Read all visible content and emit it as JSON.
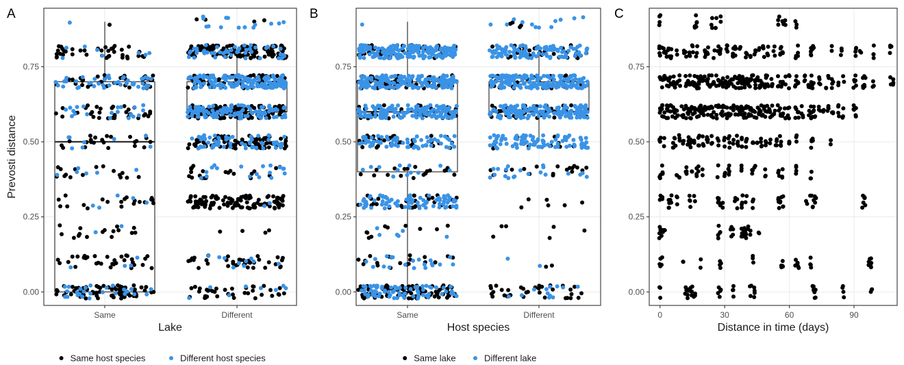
{
  "colors": {
    "black": "#000000",
    "blue": "#3a93e6"
  },
  "chart_data": [
    {
      "panel": "A",
      "type": "scatter",
      "xlabel": "Lake",
      "ylabel": "Prevosti distance",
      "categories": [
        "Same",
        "Different"
      ],
      "ylim": [
        -0.045,
        0.945
      ],
      "yticks": [
        0.0,
        0.25,
        0.5,
        0.75
      ],
      "ytick_labels": [
        "0.00",
        "0.25",
        "0.50",
        "0.75"
      ],
      "grid": true,
      "legend": {
        "position": "bottom",
        "entries": [
          {
            "label": "Same host species",
            "color": "#000000"
          },
          {
            "label": "Different host species",
            "color": "#3a93e6"
          }
        ]
      },
      "boxplots": [
        {
          "category": "Same",
          "min": 0.0,
          "q1": 0.0,
          "median": 0.5,
          "q3": 0.7,
          "max": 0.9
        },
        {
          "category": "Different",
          "min": 0.5,
          "q1": 0.6,
          "median": 0.6,
          "q3": 0.7,
          "max": 0.8
        }
      ],
      "series": [
        {
          "name": "Same host species",
          "color": "#000000",
          "points": {
            "Same": {
              "0.0": 70,
              "0.1": 32,
              "0.2": 16,
              "0.3": 20,
              "0.4": 16,
              "0.5": 22,
              "0.6": 34,
              "0.7": 36,
              "0.8": 38,
              "0.9": 1
            },
            "Different": {
              "0.0": 36,
              "0.1": 38,
              "0.2": 4,
              "0.3": 110,
              "0.4": 22,
              "0.5": 90,
              "0.6": 130,
              "0.7": 70,
              "0.8": 140,
              "0.9": 4
            }
          }
        },
        {
          "name": "Different host species",
          "color": "#3a93e6",
          "points": {
            "Same": {
              "0.0": 26,
              "0.1": 4,
              "0.2": 2,
              "0.3": 5,
              "0.4": 6,
              "0.5": 8,
              "0.6": 20,
              "0.7": 44,
              "0.8": 8,
              "0.9": 1
            },
            "Different": {
              "0.0": 8,
              "0.1": 10,
              "0.2": 0,
              "0.3": 2,
              "0.4": 18,
              "0.5": 60,
              "0.6": 110,
              "0.7": 150,
              "0.8": 50,
              "0.9": 14
            }
          }
        }
      ]
    },
    {
      "panel": "B",
      "type": "scatter",
      "xlabel": "Host species",
      "ylabel": "",
      "categories": [
        "Same",
        "Different"
      ],
      "ylim": [
        -0.045,
        0.945
      ],
      "yticks": [
        0.0,
        0.25,
        0.5,
        0.75
      ],
      "ytick_labels": [
        "0.00",
        "0.25",
        "0.50",
        "0.75"
      ],
      "grid": true,
      "legend": {
        "position": "bottom",
        "entries": [
          {
            "label": "Same lake",
            "color": "#000000"
          },
          {
            "label": "Different lake",
            "color": "#3a93e6"
          }
        ]
      },
      "boxplots": [
        {
          "category": "Same",
          "min": 0.0,
          "q1": 0.4,
          "median": 0.6,
          "q3": 0.7,
          "max": 0.9
        },
        {
          "category": "Different",
          "min": 0.5,
          "q1": 0.6,
          "median": 0.6,
          "q3": 0.7,
          "max": 0.8
        }
      ],
      "series": [
        {
          "name": "Same lake",
          "color": "#000000",
          "points": {
            "Same": {
              "0.0": 90,
              "0.1": 20,
              "0.2": 10,
              "0.3": 30,
              "0.4": 18,
              "0.5": 30,
              "0.6": 40,
              "0.7": 60,
              "0.8": 40,
              "0.9": 0
            },
            "Different": {
              "0.0": 34,
              "0.1": 2,
              "0.2": 6,
              "0.3": 6,
              "0.4": 18,
              "0.5": 10,
              "0.6": 40,
              "0.7": 36,
              "0.8": 30,
              "0.9": 4
            }
          }
        },
        {
          "name": "Different lake",
          "color": "#3a93e6",
          "points": {
            "Same": {
              "0.0": 70,
              "0.1": 20,
              "0.2": 6,
              "0.3": 80,
              "0.4": 12,
              "0.5": 70,
              "0.6": 150,
              "0.7": 170,
              "0.8": 170,
              "0.9": 1
            },
            "Different": {
              "0.0": 12,
              "0.1": 2,
              "0.2": 0,
              "0.3": 0,
              "0.4": 20,
              "0.5": 90,
              "0.6": 150,
              "0.7": 170,
              "0.8": 110,
              "0.9": 12
            }
          }
        }
      ]
    },
    {
      "panel": "C",
      "type": "scatter",
      "xlabel": "Distance in time (days)",
      "ylabel": "",
      "xlim": [
        -5,
        110
      ],
      "xticks": [
        0,
        30,
        60,
        90
      ],
      "ylim": [
        -0.045,
        0.945
      ],
      "yticks": [
        0.0,
        0.25,
        0.5,
        0.75
      ],
      "ytick_labels": [
        "0.00",
        "0.25",
        "0.50",
        "0.75"
      ],
      "grid": true,
      "rows": [
        {
          "y": 0.0,
          "days": [
            0,
            12,
            13,
            14,
            15,
            16,
            27,
            28,
            34,
            42,
            44,
            71,
            72,
            85,
            98
          ]
        },
        {
          "y": 0.1,
          "days": [
            0,
            1,
            11,
            19,
            28,
            43,
            56,
            57,
            63,
            64,
            70,
            97,
            98
          ]
        },
        {
          "y": 0.2,
          "days": [
            0,
            1,
            2,
            27,
            28,
            33,
            34,
            38,
            39,
            40,
            41,
            42,
            46
          ]
        },
        {
          "y": 0.3,
          "days": [
            0,
            1,
            4,
            5,
            8,
            14,
            16,
            27,
            28,
            29,
            35,
            36,
            38,
            40,
            43,
            55,
            56,
            57,
            68,
            70,
            71,
            72,
            94,
            95
          ]
        },
        {
          "y": 0.4,
          "days": [
            0,
            1,
            8,
            9,
            12,
            15,
            17,
            18,
            20,
            27,
            30,
            32,
            38,
            43,
            44,
            49,
            55,
            57,
            63,
            70
          ]
        },
        {
          "y": 0.5,
          "days": [
            0,
            2,
            6,
            7,
            9,
            11,
            13,
            14,
            16,
            18,
            20,
            22,
            24,
            27,
            30,
            32,
            34,
            36,
            38,
            40,
            43,
            45,
            47,
            49,
            51,
            54,
            56,
            60,
            63,
            70,
            71,
            79
          ]
        },
        {
          "y": 0.6,
          "days": [
            0,
            1,
            2,
            3,
            4,
            5,
            6,
            7,
            8,
            10,
            11,
            12,
            13,
            14,
            15,
            16,
            17,
            18,
            19,
            20,
            21,
            22,
            23,
            24,
            25,
            26,
            27,
            28,
            29,
            30,
            31,
            32,
            33,
            34,
            35,
            36,
            37,
            38,
            39,
            40,
            41,
            42,
            43,
            44,
            45,
            46,
            47,
            48,
            49,
            50,
            51,
            52,
            53,
            55,
            56,
            57,
            58,
            59,
            60,
            63,
            64,
            66,
            69,
            70,
            71,
            72,
            74,
            76,
            78,
            80,
            83,
            85,
            90,
            91
          ]
        },
        {
          "y": 0.7,
          "days": [
            0,
            1,
            2,
            3,
            4,
            5,
            6,
            7,
            8,
            9,
            12,
            13,
            14,
            15,
            16,
            17,
            18,
            19,
            20,
            21,
            22,
            23,
            24,
            25,
            26,
            27,
            28,
            29,
            30,
            31,
            32,
            33,
            34,
            35,
            36,
            37,
            38,
            39,
            40,
            41,
            42,
            43,
            44,
            45,
            46,
            47,
            48,
            49,
            50,
            52,
            55,
            56,
            57,
            58,
            60,
            63,
            64,
            67,
            69,
            70,
            71,
            74,
            77,
            78,
            80,
            83,
            85,
            90,
            91,
            94,
            95,
            99,
            107,
            108
          ]
        },
        {
          "y": 0.8,
          "days": [
            0,
            1,
            2,
            3,
            4,
            5,
            8,
            11,
            12,
            14,
            15,
            17,
            21,
            22,
            25,
            27,
            28,
            31,
            34,
            35,
            37,
            40,
            42,
            44,
            46,
            48,
            50,
            53,
            56,
            57,
            63,
            64,
            70,
            71,
            80,
            84,
            91,
            93,
            99,
            107
          ]
        },
        {
          "y": 0.9,
          "days": [
            0,
            16,
            17,
            24,
            26,
            28,
            55,
            57,
            58,
            63
          ]
        }
      ]
    }
  ]
}
